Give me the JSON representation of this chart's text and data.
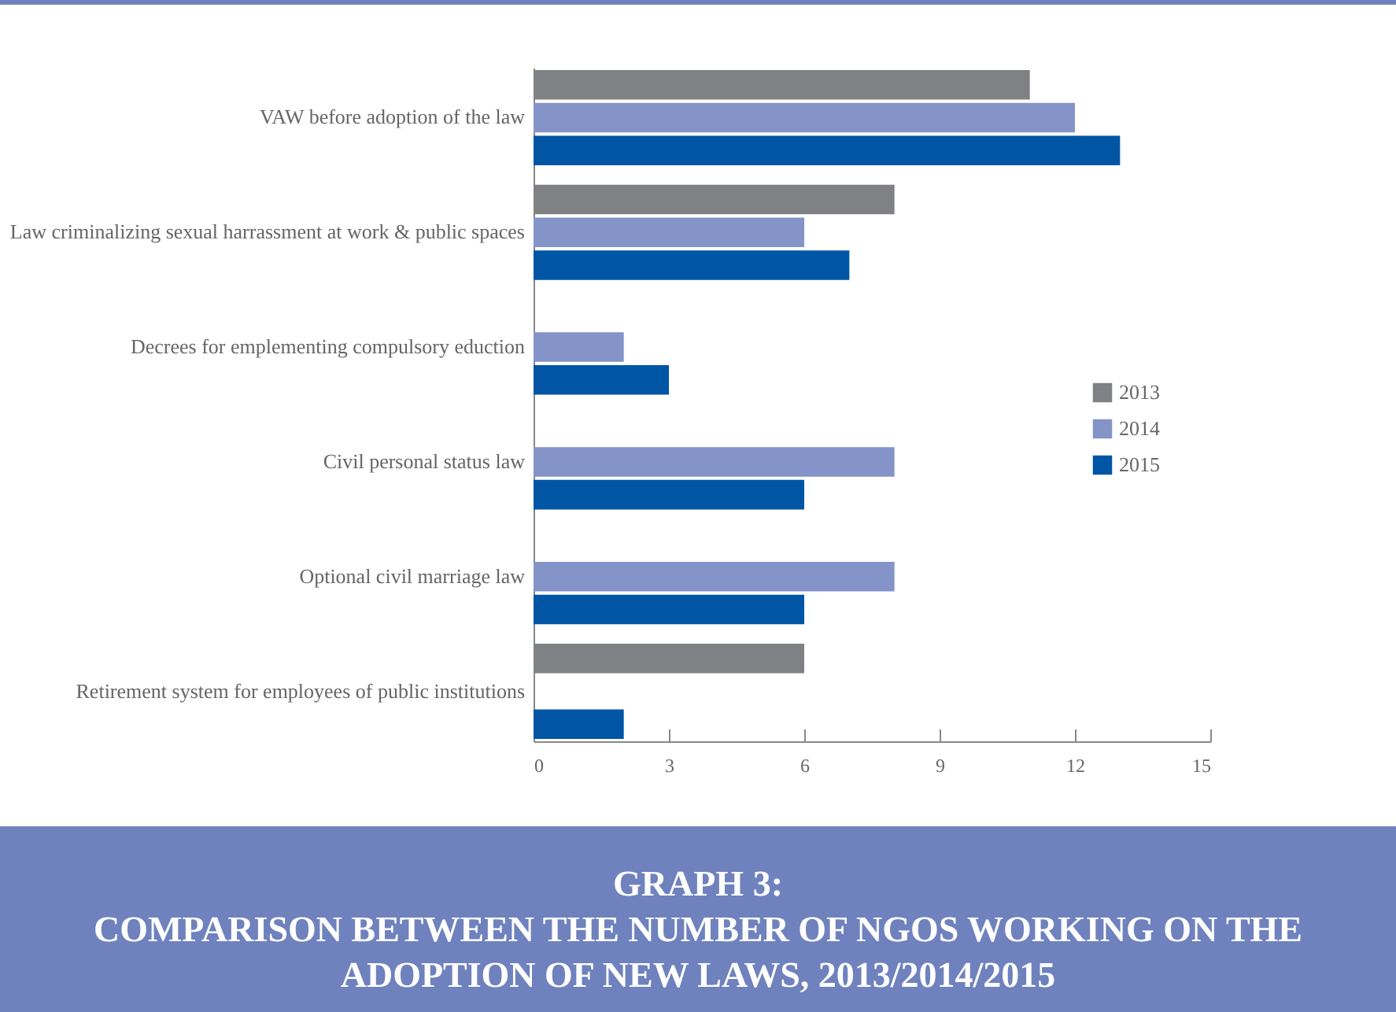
{
  "chart_data": {
    "type": "bar",
    "orientation": "horizontal",
    "title": "GRAPH 3:",
    "subtitle": "COMPARISON BETWEEN THE NUMBER OF NGOS WORKING ON THE ADOPTION OF NEW LAWS, 2013/2014/2015",
    "categories": [
      "VAW before adoption of the law",
      "Law criminalizing sexual harrassment at work & public spaces",
      "Decrees for emplementing compulsory eduction",
      "Civil personal status law",
      "Optional civil marriage law",
      "Retirement system for employees of public institutions"
    ],
    "series": [
      {
        "name": "2013",
        "color": "#808184",
        "values": [
          11,
          8,
          null,
          null,
          null,
          6
        ]
      },
      {
        "name": "2014",
        "color": "#8493c8",
        "values": [
          12,
          6,
          2,
          8,
          8,
          null
        ]
      },
      {
        "name": "2015",
        "color": "#0055a5",
        "values": [
          13,
          7,
          3,
          6,
          6,
          2
        ]
      }
    ],
    "xlim": [
      0,
      15
    ],
    "xticks": [
      0,
      3,
      6,
      9,
      12,
      15
    ],
    "grid": false,
    "legend": "right"
  }
}
